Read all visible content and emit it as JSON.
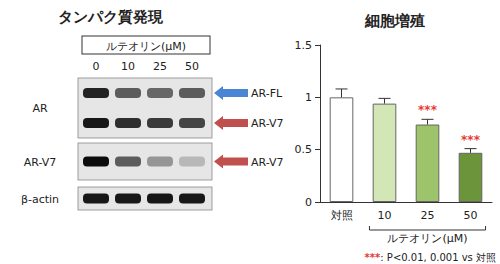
{
  "blot": {
    "title": "タンパク質発現",
    "treatment": "ルテオリン(μM)",
    "doses": [
      0,
      10,
      25,
      50
    ],
    "panels": [
      {
        "label": "AR",
        "bands": [
          {
            "name": "AR-FL",
            "arrow_color": "#4a86d4",
            "intensity": [
              0.85,
              0.6,
              0.55,
              0.6
            ]
          },
          {
            "name": "AR-V7",
            "arrow_color": "#c0504d",
            "intensity": [
              0.9,
              0.8,
              0.75,
              0.7
            ]
          }
        ]
      },
      {
        "label": "AR-V7",
        "bands": [
          {
            "name": "AR-V7",
            "arrow_color": "#c0504d",
            "intensity": [
              0.95,
              0.6,
              0.35,
              0.2
            ]
          }
        ]
      },
      {
        "label": "β-actin",
        "bands": [
          {
            "intensity": [
              0.9,
              0.9,
              0.9,
              0.9
            ]
          }
        ]
      }
    ]
  },
  "chart_data": {
    "type": "bar",
    "title": "細胞増殖",
    "categories": [
      "対照",
      "10",
      "25",
      "50"
    ],
    "values": [
      1.0,
      0.94,
      0.74,
      0.47
    ],
    "errors": [
      0.08,
      0.05,
      0.05,
      0.04
    ],
    "significance": [
      null,
      null,
      "***",
      "***"
    ],
    "colors": [
      "#ffffff",
      "#d3e6b5",
      "#9dc46a",
      "#6c943a"
    ],
    "xlabel": "ルテオリン(μM)",
    "xlabel_categories": [
      "10",
      "25",
      "50"
    ],
    "ylim": [
      0,
      1.5
    ],
    "yticks": [
      0,
      0.5,
      1,
      1.5
    ],
    "grid": false,
    "note": {
      "marker": "***",
      "text": ": P<0.01, 0.001 vs 対照"
    }
  }
}
